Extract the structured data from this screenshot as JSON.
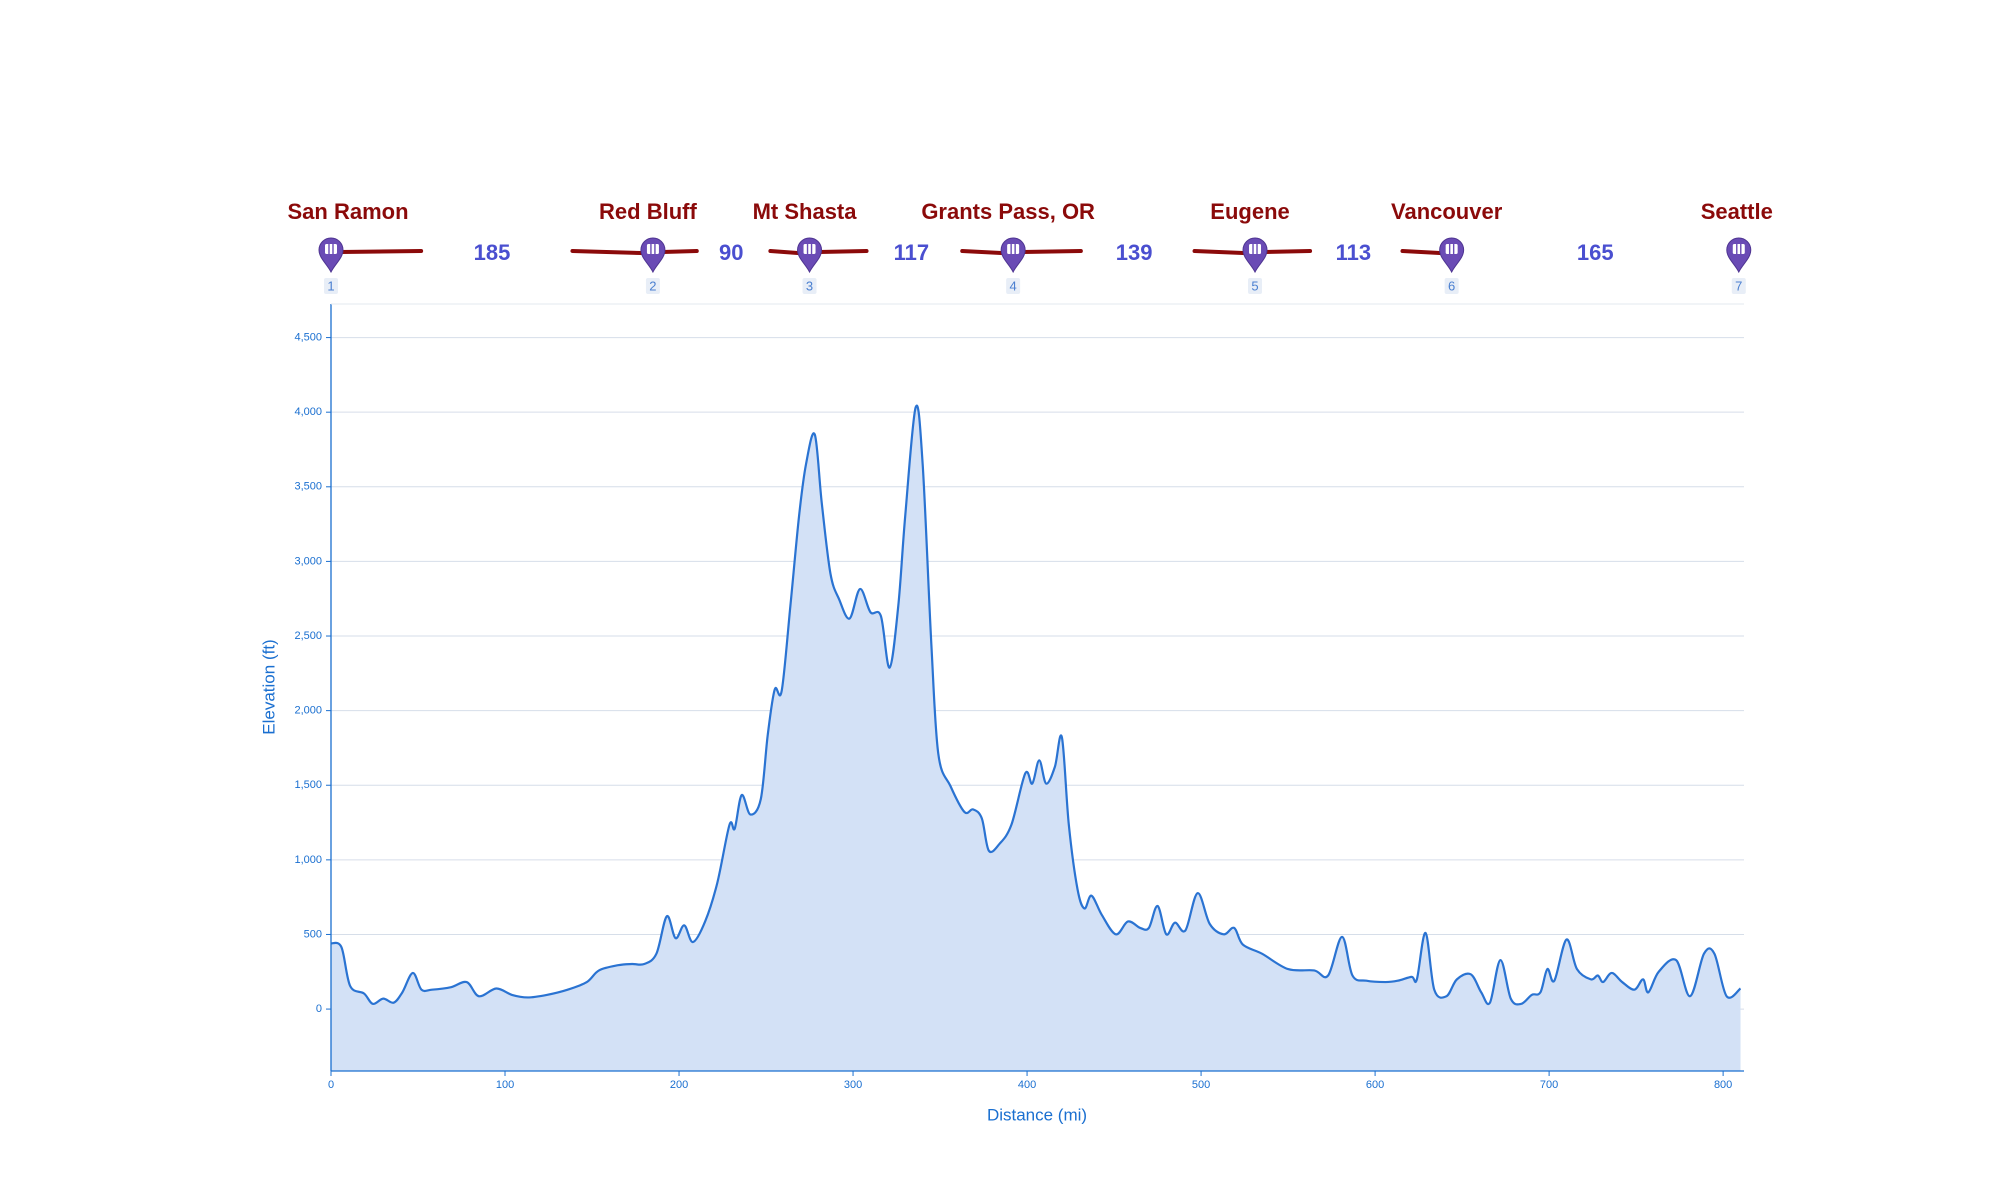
{
  "chart_data": {
    "type": "area",
    "x_label": "Distance (mi)",
    "y_label": "Elevation (ft)",
    "color": "#2a73d2",
    "fill": "#d3e1f6",
    "grid": true,
    "xlim": [
      0,
      812
    ],
    "ylim": [
      -415,
      4725
    ],
    "xticks": [
      0,
      100,
      200,
      300,
      400,
      500,
      600,
      700,
      800
    ],
    "yticks": [
      0,
      500,
      {
        "value": 1000,
        "label": "1,000"
      },
      {
        "value": 1500,
        "label": "1,500"
      },
      {
        "value": 2000,
        "label": "2,000"
      },
      {
        "value": 2500,
        "label": "2,500"
      },
      {
        "value": 3000,
        "label": "3,000"
      },
      {
        "value": 3500,
        "label": "3,500"
      },
      {
        "value": 4000,
        "label": "4,000"
      },
      {
        "value": 4500,
        "label": "4,500"
      }
    ],
    "stops": [
      {
        "name": "San Ramon",
        "number": 1
      },
      {
        "name": "Red Bluff",
        "number": 2
      },
      {
        "name": "Mt Shasta",
        "number": 3
      },
      {
        "name": "Grants Pass, OR",
        "number": 4
      },
      {
        "name": "Eugene",
        "number": 5
      },
      {
        "name": "Vancouver",
        "number": 6
      },
      {
        "name": "Seattle",
        "number": 7
      }
    ],
    "legs": [
      185,
      90,
      117,
      139,
      113,
      165
    ],
    "x": [
      0,
      6,
      11,
      19,
      24,
      30,
      36,
      41,
      47,
      52,
      58,
      69,
      78,
      85,
      95,
      104,
      113,
      124,
      136,
      147,
      154,
      165,
      173,
      180,
      187,
      193,
      198,
      203,
      208,
      215,
      222,
      229,
      232,
      236,
      241,
      247,
      251,
      255,
      259,
      264,
      269,
      273,
      278,
      282,
      287,
      292,
      298,
      304,
      310,
      316,
      321,
      326,
      330,
      336,
      340,
      345,
      349,
      356,
      364,
      369,
      374,
      378,
      384,
      391,
      399,
      403,
      407,
      411,
      416,
      420,
      424,
      429,
      433,
      437,
      443,
      451,
      458,
      465,
      470,
      475,
      480,
      485,
      491,
      498,
      505,
      513,
      519,
      524,
      535,
      550,
      565,
      573,
      581,
      587,
      595,
      606,
      613,
      621,
      624,
      629,
      634,
      641,
      647,
      655,
      661,
      666,
      672,
      678,
      684,
      690,
      695,
      699,
      703,
      710,
      716,
      724,
      728,
      731,
      736,
      742,
      749,
      754,
      757,
      763,
      773,
      781,
      789,
      795,
      802,
      810
    ],
    "values": [
      440,
      415,
      155,
      104,
      35,
      70,
      43,
      112,
      242,
      130,
      130,
      147,
      181,
      86,
      138,
      95,
      78,
      95,
      130,
      181,
      259,
      294,
      302,
      302,
      371,
      622,
      475,
      561,
      449,
      587,
      846,
      1235,
      1209,
      1434,
      1304,
      1408,
      1839,
      2142,
      2133,
      2703,
      3307,
      3653,
      3851,
      3394,
      2919,
      2746,
      2617,
      2815,
      2660,
      2634,
      2288,
      2703,
      3307,
      4033,
      3653,
      2444,
      1710,
      1494,
      1321,
      1338,
      1278,
      1062,
      1105,
      1235,
      1580,
      1511,
      1667,
      1511,
      1624,
      1822,
      1235,
      803,
      674,
      760,
      630,
      501,
      587,
      544,
      544,
      691,
      501,
      579,
      527,
      777,
      570,
      501,
      544,
      432,
      371,
      268,
      259,
      225,
      484,
      225,
      190,
      181,
      190,
      216,
      199,
      510,
      130,
      86,
      199,
      233,
      112,
      43,
      328,
      69,
      35,
      95,
      112,
      268,
      190,
      466,
      268,
      199,
      225,
      181,
      242,
      181,
      130,
      199,
      112,
      250,
      328,
      86,
      371,
      371,
      86,
      138
    ]
  }
}
